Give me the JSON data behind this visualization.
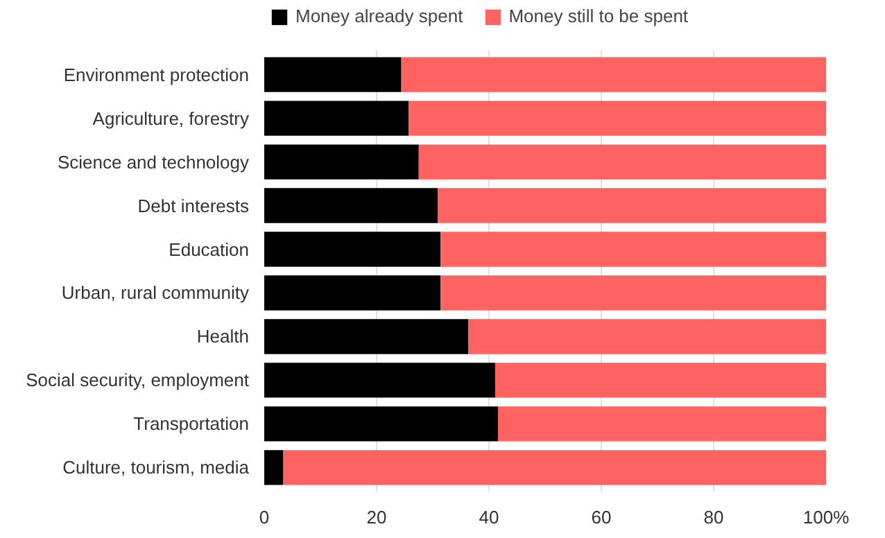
{
  "chart_data": {
    "type": "bar",
    "orientation": "horizontal",
    "stacked": true,
    "categories": [
      "Environment protection",
      "Agriculture, forestry",
      "Science and technology",
      "Debt interests",
      "Education",
      "Urban, rural community",
      "Health",
      "Social security, employment",
      "Transportation",
      "Culture, tourism, media"
    ],
    "series": [
      {
        "name": "Money already spent",
        "color": "#000000",
        "values": [
          24.4,
          25.7,
          27.5,
          30.9,
          31.4,
          31.4,
          36.3,
          41.1,
          41.6,
          3.4
        ]
      },
      {
        "name": "Money still to be spent",
        "color": "#ff6361",
        "values": [
          75.6,
          74.3,
          72.5,
          69.1,
          68.6,
          68.6,
          63.7,
          58.9,
          58.4,
          96.6
        ]
      }
    ],
    "xlim": [
      0,
      100
    ],
    "xticks": [
      0,
      20,
      40,
      60,
      80,
      {
        "value": 100,
        "label": "100%"
      }
    ],
    "grid": "x",
    "legend": "top left"
  }
}
